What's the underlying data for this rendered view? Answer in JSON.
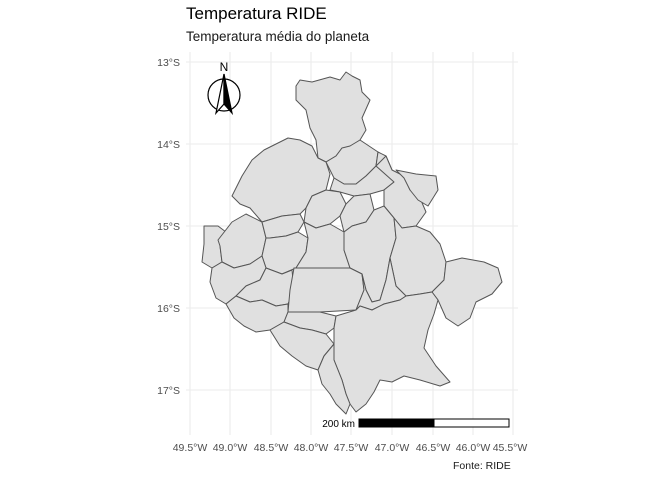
{
  "title": "Temperatura RIDE",
  "subtitle": "Temperatura média do planeta",
  "caption": "Fonte: RIDE",
  "x_tick_labels": [
    "49.5°W",
    "49.0°W",
    "48.5°W",
    "48.0°W",
    "47.5°W",
    "47.0°W",
    "46.5°W",
    "46.0°W",
    "45.5°W"
  ],
  "y_tick_labels": [
    "13°S",
    "14°S",
    "15°S",
    "16°S",
    "17°S"
  ],
  "north_arrow_label": "N",
  "scale_bar_label": "200 km",
  "colors": {
    "background": "#ffffff",
    "grid": "#ebebeb",
    "fill": "#e0e0e0",
    "border": "#555555"
  }
}
